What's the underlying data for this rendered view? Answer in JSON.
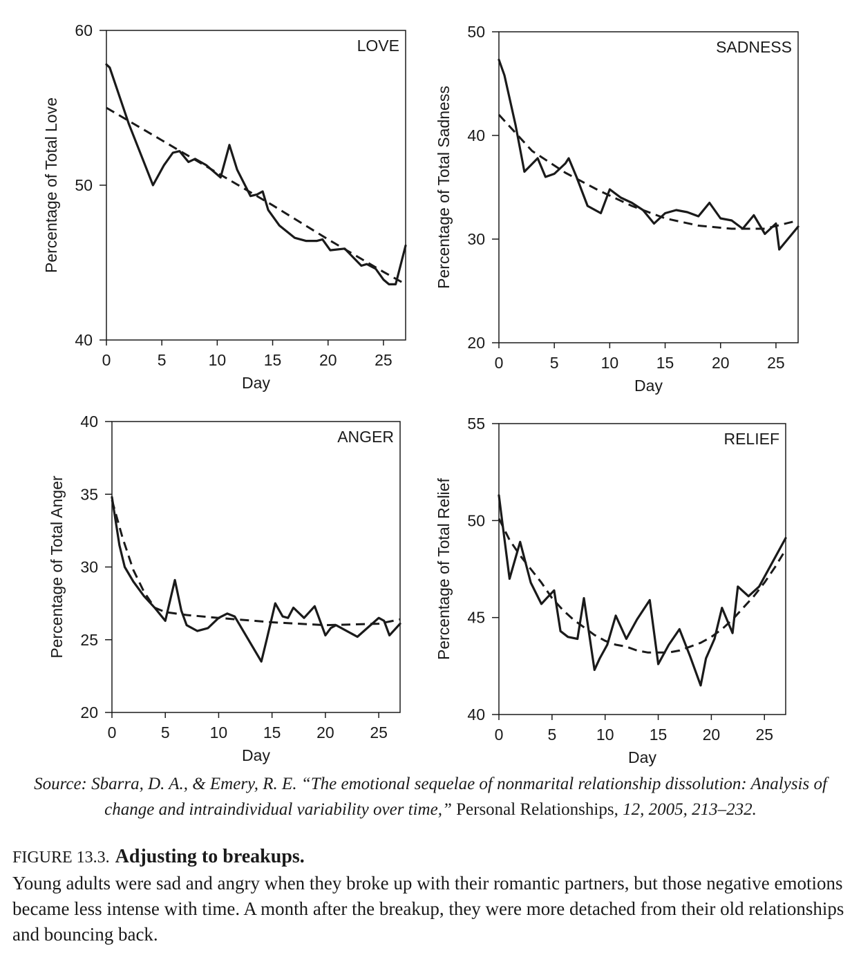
{
  "chart_data": [
    {
      "type": "line",
      "title": "LOVE",
      "xlabel": "Day",
      "ylabel": "Percentage of Total Love",
      "xlim": [
        0,
        27
      ],
      "ylim": [
        40,
        60
      ],
      "xticks": [
        0,
        5,
        10,
        15,
        20,
        25
      ],
      "yticks": [
        40,
        50,
        60
      ],
      "series": [
        {
          "style": "solid",
          "x": [
            0,
            0.3,
            2,
            4.2,
            5.2,
            6,
            6.6,
            7.4,
            8,
            9,
            10.3,
            11.1,
            11.8,
            13,
            13.6,
            14.1,
            14.6,
            15.6,
            17,
            18,
            19,
            19.5,
            20.2,
            21.5,
            23,
            23.5,
            24.3,
            25,
            25.5,
            26.1,
            27
          ],
          "y": [
            57.8,
            57.6,
            54.0,
            50.0,
            51.3,
            52.1,
            52.2,
            51.5,
            51.7,
            51.3,
            50.5,
            52.6,
            51.0,
            49.3,
            49.4,
            49.6,
            48.4,
            47.4,
            46.6,
            46.4,
            46.4,
            46.5,
            45.8,
            45.9,
            44.8,
            44.9,
            44.6,
            43.9,
            43.6,
            43.6,
            46.1
          ]
        },
        {
          "style": "dashed",
          "x": [
            0,
            5,
            10,
            15,
            20,
            25,
            27
          ],
          "y": [
            55.0,
            52.9,
            50.8,
            48.7,
            46.5,
            44.4,
            43.6
          ]
        }
      ]
    },
    {
      "type": "line",
      "title": "SADNESS",
      "xlabel": "Day",
      "ylabel": "Percentage of Total Sadness",
      "xlim": [
        0,
        27
      ],
      "ylim": [
        20,
        50
      ],
      "xticks": [
        0,
        5,
        10,
        15,
        20,
        25
      ],
      "yticks": [
        20,
        30,
        40,
        50
      ],
      "series": [
        {
          "style": "solid",
          "x": [
            0,
            0.5,
            1.5,
            2.3,
            3.5,
            4.2,
            5,
            6,
            6.3,
            7,
            8,
            9.2,
            10,
            11,
            12,
            13,
            14,
            15,
            16,
            17,
            18,
            19,
            20,
            21,
            22,
            23,
            24,
            25,
            25.3,
            27
          ],
          "y": [
            47.3,
            45.8,
            41.0,
            36.5,
            37.8,
            36.0,
            36.3,
            37.3,
            37.8,
            36.0,
            33.2,
            32.5,
            34.8,
            34.0,
            33.5,
            32.8,
            31.5,
            32.5,
            32.8,
            32.6,
            32.2,
            33.5,
            32.0,
            31.8,
            31.0,
            32.3,
            30.5,
            31.5,
            29.0,
            31.2
          ]
        },
        {
          "style": "dashed",
          "x": [
            0,
            3,
            6,
            9,
            12,
            15,
            18,
            21,
            24,
            27
          ],
          "y": [
            42.0,
            38.5,
            36.4,
            34.7,
            33.2,
            32.0,
            31.3,
            31.0,
            31.0,
            31.8
          ]
        }
      ]
    },
    {
      "type": "line",
      "title": "ANGER",
      "xlabel": "Day",
      "ylabel": "Percentage of Total Anger",
      "xlim": [
        0,
        27
      ],
      "ylim": [
        20,
        40
      ],
      "xticks": [
        0,
        5,
        10,
        15,
        20,
        25
      ],
      "yticks": [
        20,
        25,
        30,
        35,
        40
      ],
      "series": [
        {
          "style": "solid",
          "x": [
            0,
            0.7,
            1.2,
            2,
            3,
            4,
            5,
            5.9,
            6.5,
            7,
            8,
            9,
            10,
            10.8,
            11.5,
            14,
            14.5,
            15.3,
            16,
            16.5,
            17,
            18,
            19,
            20,
            20.5,
            21,
            23,
            25,
            25.5,
            26,
            27
          ],
          "y": [
            34.8,
            31.5,
            30.0,
            29.0,
            28.0,
            27.2,
            26.3,
            29.1,
            27.0,
            26.0,
            25.6,
            25.8,
            26.5,
            26.8,
            26.6,
            23.5,
            25.0,
            27.5,
            26.6,
            26.5,
            27.2,
            26.5,
            27.3,
            25.3,
            25.8,
            26.0,
            25.2,
            26.5,
            26.3,
            25.3,
            26.1
          ]
        },
        {
          "style": "dashed",
          "x": [
            0,
            1,
            2,
            3,
            4,
            5,
            7,
            10,
            15,
            20,
            25,
            27
          ],
          "y": [
            34.6,
            32.0,
            29.8,
            28.3,
            27.2,
            26.9,
            26.7,
            26.5,
            26.2,
            26.0,
            26.1,
            26.4
          ]
        }
      ]
    },
    {
      "type": "line",
      "title": "RELIEF",
      "xlabel": "Day",
      "ylabel": "Percentage of Total Relief",
      "xlim": [
        0,
        27
      ],
      "ylim": [
        40,
        55
      ],
      "xticks": [
        0,
        5,
        10,
        15,
        20,
        25
      ],
      "yticks": [
        40,
        45,
        50,
        55
      ],
      "series": [
        {
          "style": "solid",
          "x": [
            0,
            0.3,
            1,
            2,
            3,
            4,
            4.5,
            5.2,
            5.8,
            6.5,
            7.4,
            8,
            9,
            9.5,
            10.2,
            11,
            12,
            13,
            14.2,
            15,
            16,
            17,
            18,
            19,
            19.5,
            20.3,
            21,
            22,
            22.5,
            23.5,
            24.5,
            27
          ],
          "y": [
            51.3,
            50.0,
            47.0,
            48.9,
            46.8,
            45.7,
            46.0,
            46.4,
            44.3,
            44.0,
            43.9,
            46.0,
            42.3,
            42.9,
            43.6,
            45.1,
            43.9,
            44.9,
            45.9,
            42.6,
            43.6,
            44.4,
            43.0,
            41.5,
            42.9,
            43.9,
            45.5,
            44.2,
            46.6,
            46.1,
            46.6,
            49.1
          ]
        },
        {
          "style": "dashed",
          "x": [
            0,
            1,
            2,
            3,
            4,
            5,
            6,
            7,
            8,
            9,
            10,
            11,
            12,
            13,
            14,
            15,
            16,
            17,
            18,
            19,
            20,
            21,
            22,
            23,
            24,
            25,
            26,
            27
          ],
          "y": [
            50.1,
            49.0,
            48.2,
            47.5,
            46.8,
            46.0,
            45.4,
            44.9,
            44.5,
            44.1,
            43.8,
            43.6,
            43.5,
            43.3,
            43.2,
            43.2,
            43.2,
            43.3,
            43.5,
            43.7,
            44.0,
            44.4,
            44.9,
            45.5,
            46.1,
            46.8,
            47.6,
            48.5
          ]
        }
      ]
    }
  ],
  "source": {
    "part1": "Source: Sbarra, D. A., & Emery, R. E. “The emotional sequelae of nonmarital relationship dissolution: Analysis of change and intraindividual variability over time,”",
    "part2": " Personal Relationships, ",
    "part3": "12, 2005, 213–232."
  },
  "caption": {
    "label": "FIGURE 13.3.",
    "title": "Adjusting to breakups.",
    "body": "Young adults were sad and angry when they broke up with their romantic partners, but those negative emotions became less intense with time. A month after the breakup, they were more detached from their old relationships and bouncing back."
  }
}
